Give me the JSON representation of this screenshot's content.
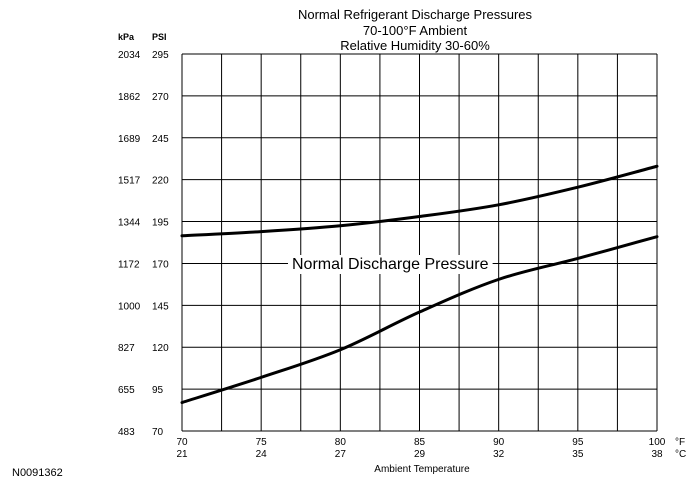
{
  "figure_id": "N0091362",
  "chart_data": {
    "type": "line",
    "title": [
      "Normal  Refrigerant  Discharge  Pressures",
      "70-100°F Ambient",
      "Relative Humidity 30-60%"
    ],
    "xlabel": "Ambient Temperature",
    "x_unit_f": "°F",
    "x_unit_c": "°C",
    "x_ticks_f": [
      "70",
      "75",
      "80",
      "85",
      "90",
      "95",
      "100"
    ],
    "x_ticks_c": [
      "21",
      "24",
      "27",
      "29",
      "32",
      "35",
      "38"
    ],
    "y_unit_kpa": "kPa",
    "y_unit_psi": "PSI",
    "y_ticks_kpa": [
      "483",
      "655",
      "827",
      "1000",
      "1172",
      "1344",
      "1517",
      "1689",
      "1862",
      "2034"
    ],
    "y_ticks_psi": [
      "70",
      "95",
      "120",
      "145",
      "170",
      "195",
      "220",
      "245",
      "270",
      "295"
    ],
    "xlim": [
      70,
      100
    ],
    "ylim": [
      70,
      295
    ],
    "grid": true,
    "band_label": "Normal Discharge Pressure",
    "series": [
      {
        "key": "upper",
        "x": [
          70,
          75,
          80,
          85,
          90,
          95,
          100
        ],
        "values": [
          186.5,
          189,
          192.5,
          198,
          205,
          215.5,
          228
        ]
      },
      {
        "key": "lower",
        "x": [
          70,
          75,
          80,
          85,
          90,
          95,
          100
        ],
        "values": [
          87,
          102,
          118.5,
          141,
          160.5,
          173,
          186
        ]
      }
    ]
  }
}
